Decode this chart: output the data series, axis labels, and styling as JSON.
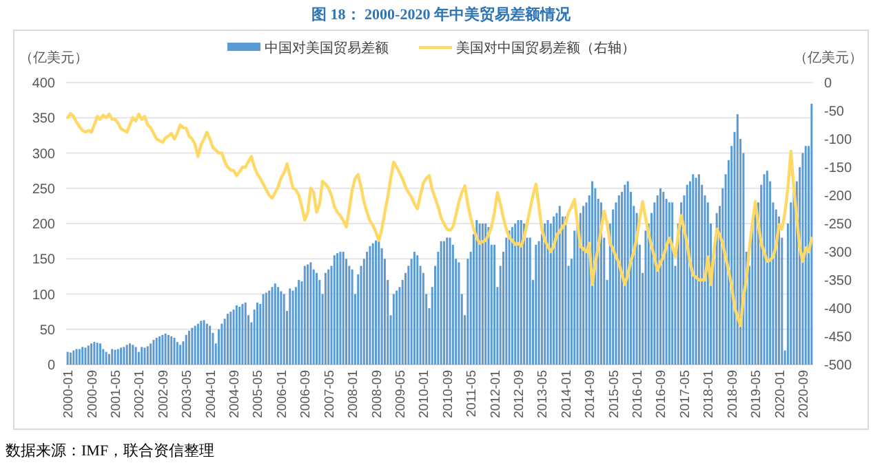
{
  "chart_data": {
    "type": "bar",
    "title": "图 18：  2000-2020 年中美贸易差额情况",
    "ylabel": "（亿美元）",
    "y2label": "（亿美元）",
    "categories": [
      "2000-01",
      null,
      null,
      null,
      null,
      null,
      null,
      null,
      "2000-09",
      null,
      null,
      null,
      null,
      null,
      null,
      null,
      "2001-05",
      null,
      null,
      null,
      null,
      null,
      null,
      null,
      "2002-01",
      null,
      null,
      null,
      null,
      null,
      null,
      null,
      "2002-09",
      null,
      null,
      null,
      null,
      null,
      null,
      null,
      "2003-05",
      null,
      null,
      null,
      null,
      null,
      null,
      null,
      "2004-01",
      null,
      null,
      null,
      null,
      null,
      null,
      null,
      "2004-09",
      null,
      null,
      null,
      null,
      null,
      null,
      null,
      "2005-05",
      null,
      null,
      null,
      null,
      null,
      null,
      null,
      "2006-01",
      null,
      null,
      null,
      null,
      null,
      null,
      null,
      "2006-09",
      null,
      null,
      null,
      null,
      null,
      null,
      null,
      "2007-05",
      null,
      null,
      null,
      null,
      null,
      null,
      null,
      "2008-01",
      null,
      null,
      null,
      null,
      null,
      null,
      null,
      "2008-09",
      null,
      null,
      null,
      null,
      null,
      null,
      null,
      "2009-05",
      null,
      null,
      null,
      null,
      null,
      null,
      null,
      "2010-01",
      null,
      null,
      null,
      null,
      null,
      null,
      null,
      "2010-09",
      null,
      null,
      null,
      null,
      null,
      null,
      null,
      "2011-05",
      null,
      null,
      null,
      null,
      null,
      null,
      null,
      "2012-01",
      null,
      null,
      null,
      null,
      null,
      null,
      null,
      "2012-09",
      null,
      null,
      null,
      null,
      null,
      null,
      null,
      "2013-05",
      null,
      null,
      null,
      null,
      null,
      null,
      null,
      "2014-01",
      null,
      null,
      null,
      null,
      null,
      null,
      null,
      "2014-09",
      null,
      null,
      null,
      null,
      null,
      null,
      null,
      "2015-05",
      null,
      null,
      null,
      null,
      null,
      null,
      null,
      "2016-01",
      null,
      null,
      null,
      null,
      null,
      null,
      null,
      "2016-09",
      null,
      null,
      null,
      null,
      null,
      null,
      null,
      "2017-05",
      null,
      null,
      null,
      null,
      null,
      null,
      null,
      "2018-01",
      null,
      null,
      null,
      null,
      null,
      null,
      null,
      "2018-09",
      null,
      null,
      null,
      null,
      null,
      null,
      null,
      "2019-05",
      null,
      null,
      null,
      null,
      null,
      null,
      null,
      "2020-01",
      null,
      null,
      null,
      null,
      null,
      null,
      null,
      "2020-09",
      null,
      null,
      null
    ],
    "series": [
      {
        "name": "中国对美国贸易差额",
        "color": "#5b9bd5",
        "values": [
          18,
          17,
          20,
          22,
          22,
          25,
          24,
          27,
          30,
          32,
          31,
          30,
          22,
          18,
          15,
          22,
          21,
          22,
          24,
          25,
          28,
          30,
          28,
          25,
          18,
          25,
          24,
          26,
          30,
          35,
          38,
          40,
          42,
          44,
          42,
          40,
          38,
          32,
          28,
          33,
          42,
          48,
          52,
          55,
          58,
          62,
          63,
          58,
          55,
          45,
          30,
          50,
          58,
          65,
          72,
          75,
          78,
          84,
          82,
          86,
          88,
          70,
          60,
          78,
          88,
          86,
          100,
          102,
          105,
          110,
          115,
          110,
          104,
          100,
          76,
          108,
          105,
          110,
          120,
          118,
          140,
          142,
          145,
          135,
          130,
          120,
          100,
          130,
          135,
          140,
          155,
          158,
          160,
          160,
          150,
          140,
          135,
          100,
          128,
          140,
          150,
          160,
          168,
          172,
          176,
          175,
          165,
          150,
          120,
          70,
          100,
          105,
          110,
          120,
          130,
          140,
          150,
          160,
          155,
          140,
          130,
          100,
          80,
          110,
          140,
          160,
          175,
          175,
          180,
          180,
          170,
          150,
          145,
          100,
          70,
          150,
          160,
          185,
          205,
          200,
          200,
          200,
          195,
          170,
          170,
          110,
          140,
          160,
          180,
          190,
          195,
          200,
          205,
          205,
          200,
          180,
          180,
          120,
          170,
          175,
          185,
          200,
          205,
          200,
          210,
          215,
          225,
          210,
          210,
          140,
          150,
          190,
          200,
          215,
          225,
          230,
          240,
          260,
          250,
          235,
          230,
          180,
          120,
          200,
          220,
          230,
          240,
          245,
          255,
          260,
          245,
          225,
          215,
          170,
          130,
          190,
          200,
          215,
          230,
          240,
          250,
          245,
          235,
          230,
          230,
          140,
          200,
          230,
          240,
          255,
          260,
          270,
          265,
          270,
          255,
          240,
          230,
          200,
          150,
          215,
          225,
          250,
          270,
          290,
          310,
          330,
          355,
          320,
          300,
          160,
          140,
          200,
          220,
          230,
          255,
          270,
          275,
          260,
          230,
          220,
          210,
          180,
          20,
          200,
          230,
          250,
          260,
          280,
          300,
          310,
          310,
          370
        ]
      },
      {
        "name": "美国对中国贸易差额（右轴）",
        "type": "line",
        "axis": "y2",
        "color": "#ffd966",
        "values": [
          -62,
          -55,
          -60,
          -70,
          -78,
          -85,
          -88,
          -85,
          -88,
          -75,
          -60,
          -65,
          -58,
          -62,
          -56,
          -65,
          -65,
          -72,
          -82,
          -85,
          -88,
          -75,
          -62,
          -68,
          -56,
          -65,
          -60,
          -75,
          -80,
          -90,
          -100,
          -103,
          -106,
          -98,
          -95,
          -90,
          -100,
          -90,
          -75,
          -80,
          -81,
          -95,
          -100,
          -110,
          -131,
          -110,
          -100,
          -88,
          -100,
          -115,
          -120,
          -125,
          -125,
          -140,
          -150,
          -155,
          -156,
          -165,
          -158,
          -150,
          -150,
          -140,
          -131,
          -150,
          -162,
          -170,
          -180,
          -190,
          -200,
          -205,
          -195,
          -185,
          -169,
          -160,
          -144,
          -165,
          -187,
          -190,
          -200,
          -220,
          -244,
          -230,
          -187,
          -195,
          -230,
          -215,
          -175,
          -180,
          -187,
          -200,
          -220,
          -230,
          -236,
          -245,
          -256,
          -225,
          -190,
          -170,
          -163,
          -185,
          -212,
          -230,
          -245,
          -253,
          -265,
          -280,
          -260,
          -230,
          -203,
          -170,
          -141,
          -150,
          -160,
          -171,
          -185,
          -195,
          -203,
          -215,
          -224,
          -200,
          -178,
          -170,
          -165,
          -190,
          -205,
          -220,
          -240,
          -250,
          -260,
          -262,
          -256,
          -235,
          -212,
          -195,
          -183,
          -215,
          -240,
          -260,
          -275,
          -285,
          -282,
          -280,
          -270,
          -256,
          -230,
          -195,
          -215,
          -240,
          -260,
          -275,
          -280,
          -287,
          -285,
          -290,
          -275,
          -250,
          -225,
          -200,
          -180,
          -220,
          -260,
          -280,
          -290,
          -300,
          -290,
          -270,
          -265,
          -255,
          -250,
          -230,
          -220,
          -207,
          -250,
          -290,
          -295,
          -300,
          -285,
          -358,
          -320,
          -293,
          -260,
          -228,
          -250,
          -285,
          -295,
          -309,
          -320,
          -340,
          -358,
          -340,
          -317,
          -300,
          -276,
          -240,
          -211,
          -240,
          -268,
          -290,
          -310,
          -333,
          -320,
          -309,
          -290,
          -276,
          -290,
          -309,
          -270,
          -236,
          -260,
          -285,
          -320,
          -341,
          -345,
          -350,
          -350,
          -350,
          -309,
          -358,
          -300,
          -260,
          -270,
          -285,
          -310,
          -333,
          -360,
          -398,
          -415,
          -431,
          -380,
          -350,
          -293,
          -250,
          -211,
          -250,
          -285,
          -300,
          -317,
          -315,
          -309,
          -290,
          -252,
          -260,
          -230,
          -187,
          -122,
          -187,
          -240,
          -293,
          -317,
          -293,
          -300,
          -276
        ]
      }
    ],
    "ylim": [
      0,
      400
    ],
    "yticks": [
      0,
      50,
      100,
      150,
      200,
      250,
      300,
      350,
      400
    ],
    "y2lim": [
      -500,
      0
    ],
    "y2ticks": [
      -500,
      -450,
      -400,
      -350,
      -300,
      -250,
      -200,
      -150,
      -100,
      -50,
      0
    ],
    "grid": "y",
    "legend": "top",
    "annotations": [
      "数据来源：IMF，联合资信整理"
    ]
  }
}
